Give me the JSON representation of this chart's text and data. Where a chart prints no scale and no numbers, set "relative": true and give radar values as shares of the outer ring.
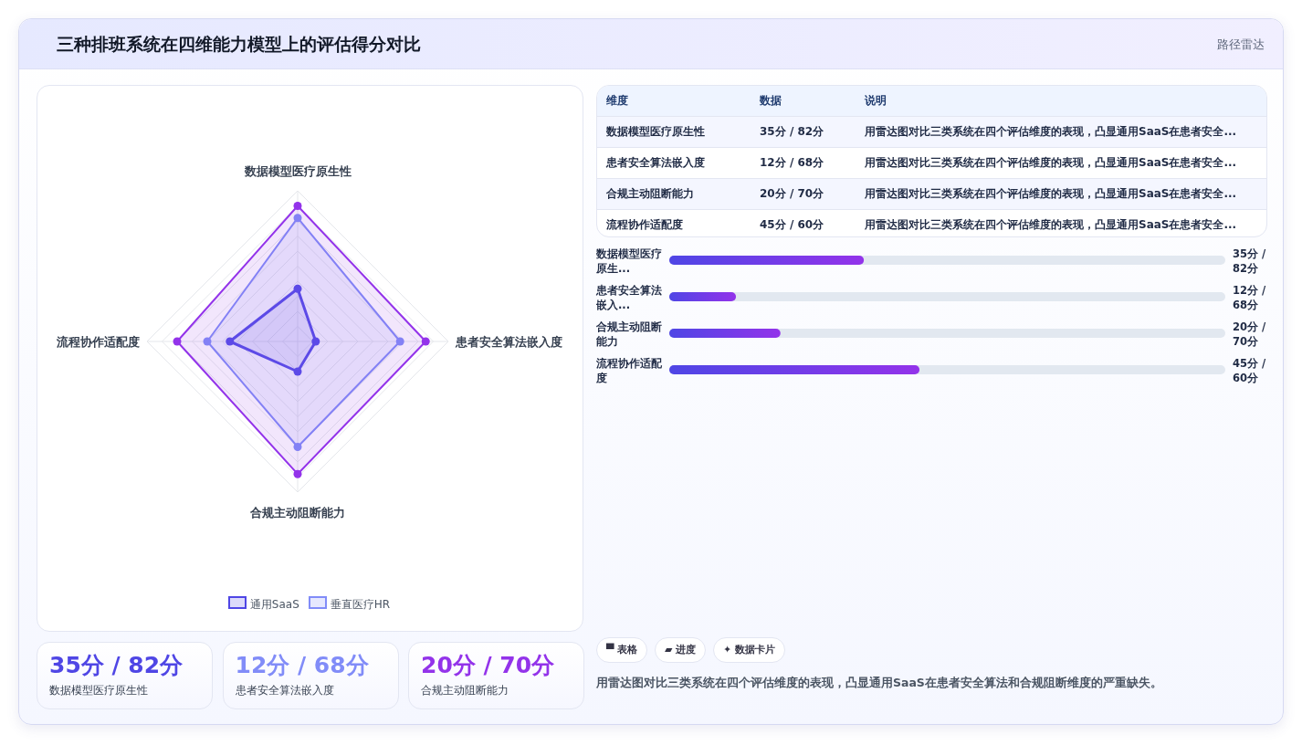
{
  "chart_data": [
    {
      "type": "other",
      "title": "三种排班系统在四维能力模型上的评估得分对比",
      "subtitle": "路径雷达"
    },
    {
      "type": "radar",
      "relative": true,
      "legend": "bottom",
      "marker": "circle",
      "categories": [
        "数据模型医疗原生性",
        "患者安全算法嵌入度",
        "合规主动阻断能力",
        "流程协作适配度"
      ],
      "series": [
        {
          "name": "通用SaaS",
          "color": "#4f46e5",
          "values": [
            0.35,
            0.12,
            0.2,
            0.45
          ]
        },
        {
          "name": "垂直医疗HR",
          "color": "#818cf8",
          "values": [
            0.82,
            0.68,
            0.7,
            0.6
          ]
        },
        {
          "color": "#9333ea",
          "values": [
            0.9,
            0.85,
            0.88,
            0.8
          ]
        }
      ]
    },
    {
      "type": "other",
      "annotations": [
        "维度",
        "数据",
        "说明",
        "数据模型医疗原生性",
        "35分 / 82分",
        "用雷达图对比三类系统在四个评估维度的表现，凸显通用SaaS在患者安全...",
        "患者安全算法嵌入度",
        "12分 / 68分",
        "用雷达图对比三类系统在四个评估维度的表现，凸显通用SaaS在患者安全...",
        "合规主动阻断能力",
        "20分 / 70分",
        "用雷达图对比三类系统在四个评估维度的表现，凸显通用SaaS在患者安全...",
        "流程协作适配度",
        "45分 / 60分",
        "用雷达图对比三类系统在四个评估维度的表现，凸显通用SaaS在患者安全..."
      ]
    },
    {
      "type": "bar",
      "orientation": "horizontal",
      "color": "#9333ea",
      "xlim": [
        0,
        100
      ],
      "categories": [
        "数据模型医疗原生...",
        "患者安全算法嵌入...",
        "合规主动阻断能力",
        "流程协作适配度"
      ],
      "values": [
        35,
        12,
        20,
        45
      ],
      "value_labels": [
        "35分 / 82分",
        "12分 / 68分",
        "20分 / 70分",
        "45分 / 60分"
      ]
    },
    {
      "type": "other",
      "colors": [
        "#4f46e5",
        "#818cf8",
        "#9333ea"
      ],
      "annotations": [
        "35分 / 82分",
        "数据模型医疗原生性",
        "12分 / 68分",
        "患者安全算法嵌入度",
        "20分 / 70分",
        "合规主动阻断能力"
      ]
    },
    {
      "type": "other",
      "annotations": [
        "▀ 表格",
        "▰ 进度",
        "✦ 数据卡片",
        "用雷达图对比三类系统在四个评估维度的表现，凸显通用SaaS在患者安全算法和合规阻断维度的严重缺失。"
      ]
    }
  ]
}
